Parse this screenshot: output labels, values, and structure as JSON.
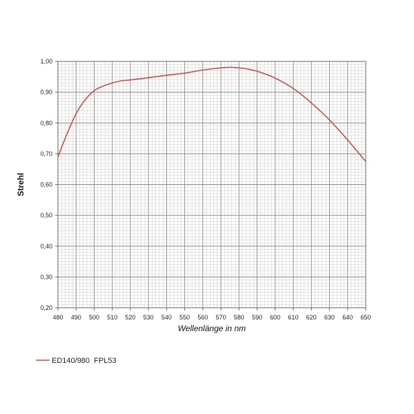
{
  "chart_data": {
    "type": "line",
    "title": "",
    "xlabel": "Wellenlänge in nm",
    "ylabel": "Strehl",
    "xlim": [
      480,
      650
    ],
    "ylim": [
      0.2,
      1.0
    ],
    "x_ticks": [
      "480",
      "490",
      "500",
      "510",
      "520",
      "530",
      "540",
      "550",
      "560",
      "570",
      "580",
      "590",
      "600",
      "610",
      "620",
      "630",
      "640",
      "650"
    ],
    "y_ticks": [
      "0,20",
      "0,30",
      "0,40",
      "0,50",
      "0,60",
      "0,70",
      "0,80",
      "0,90",
      "1,00"
    ],
    "grid": true,
    "legend_position": "bottom-left",
    "series": [
      {
        "name": "ED140/980  FPL53",
        "color": "#c0504d",
        "x": [
          480,
          485,
          490,
          495,
          500,
          505,
          510,
          515,
          520,
          530,
          540,
          550,
          560,
          570,
          575,
          580,
          585,
          590,
          595,
          600,
          605,
          610,
          615,
          620,
          630,
          640,
          650
        ],
        "y": [
          0.69,
          0.765,
          0.83,
          0.875,
          0.905,
          0.92,
          0.93,
          0.937,
          0.94,
          0.947,
          0.955,
          0.962,
          0.972,
          0.979,
          0.981,
          0.979,
          0.975,
          0.968,
          0.958,
          0.946,
          0.93,
          0.912,
          0.89,
          0.865,
          0.81,
          0.745,
          0.675
        ]
      }
    ]
  }
}
